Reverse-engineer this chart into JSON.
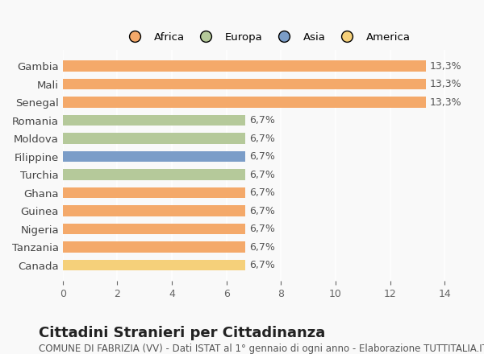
{
  "countries": [
    "Gambia",
    "Mali",
    "Senegal",
    "Romania",
    "Moldova",
    "Filippine",
    "Turchia",
    "Ghana",
    "Guinea",
    "Nigeria",
    "Tanzania",
    "Canada"
  ],
  "values": [
    13.3,
    13.3,
    13.3,
    6.7,
    6.7,
    6.7,
    6.7,
    6.7,
    6.7,
    6.7,
    6.7,
    6.7
  ],
  "labels": [
    "13,3%",
    "13,3%",
    "13,3%",
    "6,7%",
    "6,7%",
    "6,7%",
    "6,7%",
    "6,7%",
    "6,7%",
    "6,7%",
    "6,7%",
    "6,7%"
  ],
  "continents": [
    "Africa",
    "Africa",
    "Africa",
    "Europa",
    "Europa",
    "Asia",
    "Europa",
    "Africa",
    "Africa",
    "Africa",
    "Africa",
    "America"
  ],
  "colors": {
    "Africa": "#F4A96A",
    "Europa": "#B5C99A",
    "Asia": "#7B9DC8",
    "America": "#F5D07A"
  },
  "legend_order": [
    "Africa",
    "Europa",
    "Asia",
    "America"
  ],
  "legend_colors": [
    "#F4A96A",
    "#B5C99A",
    "#7B9DC8",
    "#F5D07A"
  ],
  "xlim": [
    0,
    15
  ],
  "xticks": [
    0,
    2,
    4,
    6,
    8,
    10,
    12,
    14
  ],
  "title": "Cittadini Stranieri per Cittadinanza",
  "subtitle": "COMUNE DI FABRIZIA (VV) - Dati ISTAT al 1° gennaio di ogni anno - Elaborazione TUTTITALIA.IT",
  "background_color": "#f9f9f9",
  "bar_height": 0.6,
  "label_fontsize": 9,
  "title_fontsize": 13,
  "subtitle_fontsize": 8.5
}
